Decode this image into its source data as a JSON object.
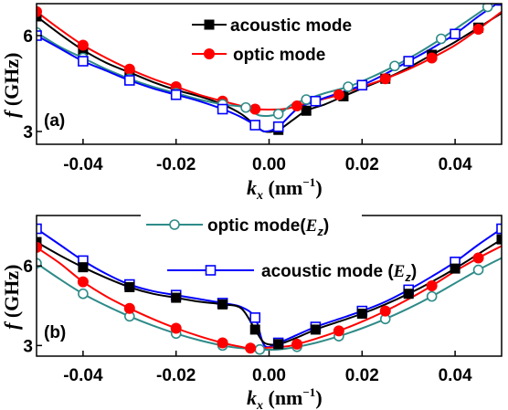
{
  "chart_data": [
    {
      "type": "line",
      "panel_label": "(a)",
      "xlabel": "k_x (nm⁻¹)",
      "ylabel": "f (GHz)",
      "xlim": [
        -0.05,
        0.05
      ],
      "ylim": [
        2.6,
        7.0
      ],
      "xticks": [
        "-0.04",
        "-0.02",
        "0.00",
        "0.02",
        "0.04"
      ],
      "yticks": [
        "3",
        "6"
      ],
      "legend_position": "top-center",
      "series": [
        {
          "name": "acoustic mode",
          "color": "#000000",
          "marker": "filled-square",
          "x": [
            -0.05,
            -0.045,
            -0.04,
            -0.035,
            -0.03,
            -0.025,
            -0.02,
            -0.015,
            -0.01,
            -0.006,
            -0.003,
            -0.001,
            0.002,
            0.005,
            0.008,
            0.012,
            0.016,
            0.02,
            0.025,
            0.03,
            0.035,
            0.04,
            0.045,
            0.05
          ],
          "y": [
            6.6,
            6.05,
            5.55,
            5.15,
            4.85,
            4.55,
            4.3,
            4.1,
            3.85,
            3.55,
            3.2,
            3.0,
            3.05,
            3.35,
            3.65,
            3.85,
            4.1,
            4.35,
            4.65,
            5.0,
            5.4,
            5.8,
            6.25,
            6.7
          ]
        },
        {
          "name": "optic mode",
          "color": "#ff0000",
          "marker": "filled-circle",
          "x": [
            -0.05,
            -0.045,
            -0.04,
            -0.035,
            -0.03,
            -0.025,
            -0.02,
            -0.015,
            -0.01,
            -0.006,
            -0.003,
            0.003,
            0.006,
            0.01,
            0.015,
            0.02,
            0.025,
            0.03,
            0.035,
            0.04,
            0.045,
            0.05
          ],
          "y": [
            6.75,
            6.2,
            5.7,
            5.3,
            4.95,
            4.65,
            4.4,
            4.15,
            3.95,
            3.8,
            3.7,
            3.7,
            3.8,
            3.95,
            4.15,
            4.4,
            4.65,
            4.95,
            5.3,
            5.7,
            6.2,
            6.75
          ]
        },
        {
          "name": "",
          "color": "#2e8b88",
          "marker": "open-circle",
          "x": [
            -0.05,
            -0.045,
            -0.04,
            -0.035,
            -0.03,
            -0.025,
            -0.02,
            -0.015,
            -0.01,
            -0.007,
            -0.005,
            -0.002,
            0.002,
            0.005,
            0.008,
            0.012,
            0.017,
            0.022,
            0.027,
            0.032,
            0.037,
            0.042,
            0.047,
            0.05
          ],
          "y": [
            6.1,
            5.65,
            5.3,
            4.95,
            4.65,
            4.4,
            4.2,
            4.0,
            3.85,
            3.8,
            3.75,
            3.5,
            3.55,
            3.85,
            4.0,
            4.2,
            4.4,
            4.7,
            5.05,
            5.45,
            5.9,
            6.4,
            6.9,
            7.2
          ]
        },
        {
          "name": "",
          "color": "#0000ff",
          "marker": "open-square",
          "x": [
            -0.05,
            -0.045,
            -0.04,
            -0.035,
            -0.03,
            -0.025,
            -0.02,
            -0.015,
            -0.01,
            -0.006,
            -0.003,
            -0.001,
            0.002,
            0.006,
            0.01,
            0.015,
            0.02,
            0.025,
            0.03,
            0.035,
            0.04,
            0.045,
            0.05
          ],
          "y": [
            6.0,
            5.6,
            5.2,
            4.9,
            4.6,
            4.35,
            4.15,
            3.95,
            3.7,
            3.45,
            3.2,
            3.0,
            3.15,
            3.7,
            3.95,
            4.2,
            4.45,
            4.8,
            5.2,
            5.6,
            6.05,
            6.6,
            7.1
          ]
        }
      ]
    },
    {
      "type": "line",
      "panel_label": "(b)",
      "xlabel": "k_x (nm⁻¹)",
      "ylabel": "f (GHz)",
      "xlim": [
        -0.05,
        0.05
      ],
      "ylim": [
        2.6,
        7.9
      ],
      "xticks": [
        "-0.04",
        "-0.02",
        "0.00",
        "0.02",
        "0.04"
      ],
      "yticks": [
        "3",
        "6"
      ],
      "legend_position": "top-center",
      "series": [
        {
          "name": "optic mode(E_z)",
          "color": "#2e8b88",
          "marker": "open-circle",
          "x": [
            -0.05,
            -0.045,
            -0.04,
            -0.035,
            -0.03,
            -0.025,
            -0.02,
            -0.015,
            -0.01,
            -0.006,
            -0.002,
            0.002,
            0.006,
            0.01,
            0.015,
            0.02,
            0.025,
            0.03,
            0.035,
            0.04,
            0.045,
            0.05
          ],
          "y": [
            6.1,
            5.5,
            4.95,
            4.5,
            4.1,
            3.75,
            3.45,
            3.2,
            3.0,
            2.9,
            2.85,
            2.85,
            2.95,
            3.1,
            3.35,
            3.65,
            4.0,
            4.4,
            4.85,
            5.35,
            5.85,
            6.3
          ]
        },
        {
          "name": "acoustic mode (E_z)",
          "color": "#0000ff",
          "marker": "open-square",
          "x": [
            -0.05,
            -0.045,
            -0.04,
            -0.035,
            -0.03,
            -0.025,
            -0.02,
            -0.015,
            -0.01,
            -0.006,
            -0.003,
            -0.001,
            0.002,
            0.006,
            0.01,
            0.015,
            0.02,
            0.025,
            0.03,
            0.035,
            0.04,
            0.045,
            0.05
          ],
          "y": [
            7.4,
            6.8,
            6.2,
            5.7,
            5.3,
            5.05,
            4.9,
            4.75,
            4.6,
            4.45,
            4.05,
            3.0,
            3.1,
            3.4,
            3.7,
            4.0,
            4.3,
            4.65,
            5.1,
            5.6,
            6.15,
            6.8,
            7.4
          ]
        },
        {
          "name": "",
          "color": "#000000",
          "marker": "filled-square",
          "x": [
            -0.05,
            -0.045,
            -0.04,
            -0.035,
            -0.03,
            -0.025,
            -0.02,
            -0.015,
            -0.01,
            -0.006,
            -0.003,
            -0.001,
            0.002,
            0.006,
            0.01,
            0.015,
            0.02,
            0.025,
            0.03,
            0.035,
            0.04,
            0.045,
            0.05
          ],
          "y": [
            6.9,
            6.4,
            5.95,
            5.55,
            5.2,
            4.95,
            4.8,
            4.65,
            4.55,
            4.4,
            3.6,
            3.1,
            3.05,
            3.3,
            3.6,
            3.9,
            4.2,
            4.55,
            4.95,
            5.4,
            5.9,
            6.45,
            7.0
          ]
        },
        {
          "name": "",
          "color": "#ff0000",
          "marker": "filled-circle",
          "x": [
            -0.05,
            -0.045,
            -0.04,
            -0.035,
            -0.03,
            -0.025,
            -0.02,
            -0.015,
            -0.01,
            -0.006,
            -0.004,
            0.003,
            0.006,
            0.01,
            0.015,
            0.02,
            0.025,
            0.03,
            0.035,
            0.04,
            0.045,
            0.05
          ],
          "y": [
            6.7,
            6.1,
            5.4,
            4.85,
            4.4,
            4.0,
            3.65,
            3.35,
            3.1,
            2.95,
            2.9,
            2.95,
            3.05,
            3.25,
            3.55,
            3.9,
            4.3,
            4.75,
            5.25,
            5.8,
            6.3,
            6.75
          ]
        }
      ]
    }
  ]
}
